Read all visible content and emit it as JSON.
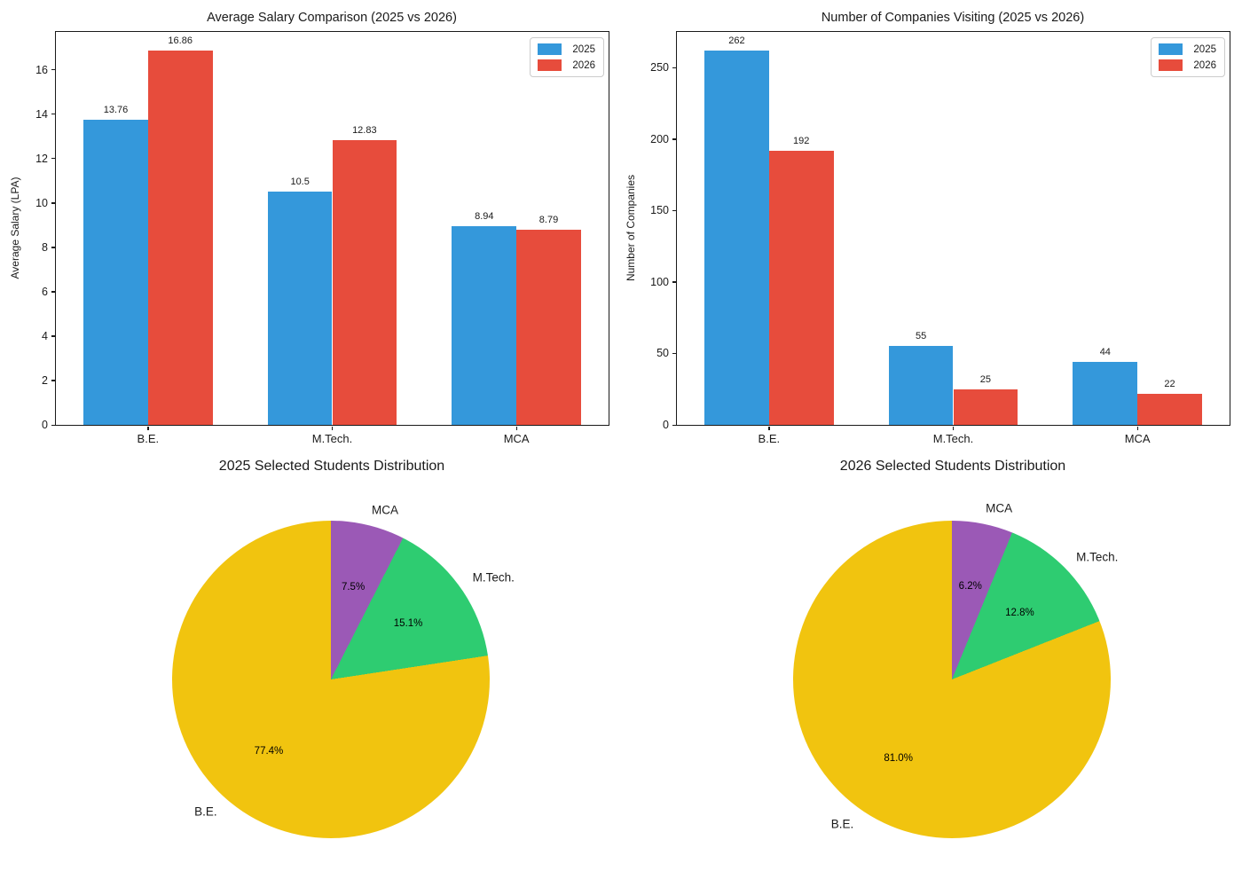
{
  "figure": {
    "background": "#ffffff"
  },
  "palette": {
    "series_2025": "#3498db",
    "series_2026": "#e74c3c",
    "pie_be": "#f1c40f",
    "pie_mtech": "#2ecc71",
    "pie_mca": "#9b59b6",
    "text": "#1a1a1a"
  },
  "legend": {
    "entries": [
      "2025",
      "2026"
    ],
    "position": "upper right"
  },
  "chart_data": [
    {
      "id": "salary-comparison-bar",
      "type": "bar",
      "title": "Average Salary Comparison (2025 vs 2026)",
      "xlabel": "",
      "ylabel": "Average Salary (LPA)",
      "categories": [
        "B.E.",
        "M.Tech.",
        "MCA"
      ],
      "series": [
        {
          "name": "2025",
          "color": "#3498db",
          "values": [
            13.76,
            10.5,
            8.94
          ],
          "value_labels": [
            "13.76",
            "10.5",
            "8.94"
          ]
        },
        {
          "name": "2026",
          "color": "#e74c3c",
          "values": [
            16.86,
            12.83,
            8.79
          ],
          "value_labels": [
            "16.86",
            "12.83",
            "8.79"
          ]
        }
      ],
      "yticks": [
        0,
        2,
        4,
        6,
        8,
        10,
        12,
        14,
        16
      ],
      "ylim": [
        0,
        17.7
      ],
      "grid": false,
      "legend_position": "upper right"
    },
    {
      "id": "companies-visiting-bar",
      "type": "bar",
      "title": "Number of Companies Visiting (2025 vs 2026)",
      "xlabel": "",
      "ylabel": "Number of Companies",
      "categories": [
        "B.E.",
        "M.Tech.",
        "MCA"
      ],
      "series": [
        {
          "name": "2025",
          "color": "#3498db",
          "values": [
            262,
            55,
            44
          ],
          "value_labels": [
            "262",
            "55",
            "44"
          ]
        },
        {
          "name": "2026",
          "color": "#e74c3c",
          "values": [
            192,
            25,
            22
          ],
          "value_labels": [
            "192",
            "25",
            "22"
          ]
        }
      ],
      "yticks": [
        0,
        50,
        100,
        150,
        200,
        250
      ],
      "ylim": [
        0,
        275.1
      ],
      "grid": false,
      "legend_position": "upper right"
    },
    {
      "id": "selected-students-pie-2025",
      "type": "pie",
      "title": "2025 Selected Students Distribution",
      "labels": [
        "B.E.",
        "M.Tech.",
        "MCA"
      ],
      "values": [
        77.4,
        15.1,
        7.5
      ],
      "pct_labels": [
        "77.4%",
        "15.1%",
        "7.5%"
      ],
      "colors": [
        "#f1c40f",
        "#2ecc71",
        "#9b59b6"
      ],
      "start_angle": 90,
      "direction": "counterclockwise"
    },
    {
      "id": "selected-students-pie-2026",
      "type": "pie",
      "title": "2026 Selected Students Distribution",
      "labels": [
        "B.E.",
        "M.Tech.",
        "MCA"
      ],
      "values": [
        81.0,
        12.8,
        6.2
      ],
      "pct_labels": [
        "81.0%",
        "12.8%",
        "6.2%"
      ],
      "colors": [
        "#f1c40f",
        "#2ecc71",
        "#9b59b6"
      ],
      "start_angle": 90,
      "direction": "counterclockwise"
    }
  ]
}
